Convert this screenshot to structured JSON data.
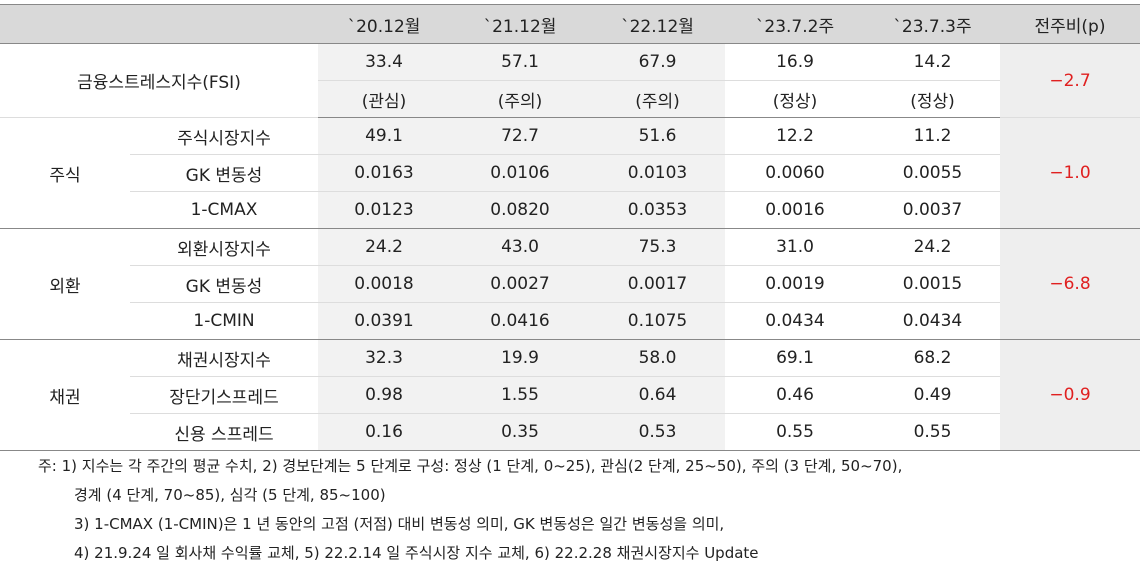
{
  "header": {
    "corner": "",
    "columns": [
      "`20.12월",
      "`21.12월",
      "`22.12월",
      "`23.7.2주",
      "`23.7.3주",
      "전주비(p)"
    ]
  },
  "fsi": {
    "label": "금융스트레스지수(FSI)",
    "values": [
      "33.4",
      "57.1",
      "67.9",
      "16.9",
      "14.2"
    ],
    "levels": [
      "(관심)",
      "(주의)",
      "(주의)",
      "(정상)",
      "(정상)"
    ],
    "change": "−2.7"
  },
  "groups": [
    {
      "label": "주식",
      "change": "−1.0",
      "rows": [
        {
          "label": "주식시장지수",
          "values": [
            "49.1",
            "72.7",
            "51.6",
            "12.2",
            "11.2"
          ]
        },
        {
          "label": "GK 변동성",
          "values": [
            "0.0163",
            "0.0106",
            "0.0103",
            "0.0060",
            "0.0055"
          ]
        },
        {
          "label": "1-CMAX",
          "values": [
            "0.0123",
            "0.0820",
            "0.0353",
            "0.0016",
            "0.0037"
          ]
        }
      ]
    },
    {
      "label": "외환",
      "change": "−6.8",
      "rows": [
        {
          "label": "외환시장지수",
          "values": [
            "24.2",
            "43.0",
            "75.3",
            "31.0",
            "24.2"
          ]
        },
        {
          "label": "GK 변동성",
          "values": [
            "0.0018",
            "0.0027",
            "0.0017",
            "0.0019",
            "0.0015"
          ]
        },
        {
          "label": "1-CMIN",
          "values": [
            "0.0391",
            "0.0416",
            "0.1075",
            "0.0434",
            "0.0434"
          ]
        }
      ]
    },
    {
      "label": "채권",
      "change": "−0.9",
      "rows": [
        {
          "label": "채권시장지수",
          "values": [
            "32.3",
            "19.9",
            "58.0",
            "69.1",
            "68.2"
          ]
        },
        {
          "label": "장단기스프레드",
          "values": [
            "0.98",
            "1.55",
            "0.64",
            "0.46",
            "0.49"
          ]
        },
        {
          "label": "신용 스프레드",
          "values": [
            "0.16",
            "0.35",
            "0.53",
            "0.55",
            "0.55"
          ]
        }
      ]
    }
  ],
  "notes": [
    "주: 1) 지수는 각 주간의 평균 수치, 2) 경보단계는 5 단계로 구성: 정상 (1 단계, 0~25), 관심(2 단계, 25~50), 주의 (3 단계, 50~70),",
    "경계 (4 단계, 70~85), 심각 (5 단계, 85~100)",
    "3) 1-CMAX (1-CMIN)은 1 년 동안의 고점 (저점) 대비 변동성 의미, GK 변동성은 일간 변동성을 의미,",
    "4) 21.9.24 일 회사채 수익률 교체, 5) 22.2.14 일 주식시장 지수 교체, 6) 22.2.28 채권시장지수 Update"
  ]
}
